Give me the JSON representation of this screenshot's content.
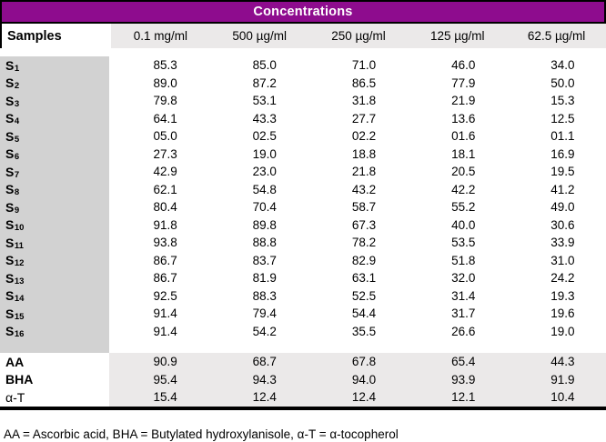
{
  "table": {
    "title": "Concentrations",
    "samples_header": "Samples",
    "columns": [
      "0.1 mg/ml",
      "500 µg/ml",
      "250 µg/ml",
      "125 µg/ml",
      "62.5 µg/ml"
    ],
    "samples": [
      {
        "label": "S",
        "sub": "1",
        "values": [
          "85.3",
          "85.0",
          "71.0",
          "46.0",
          "34.0"
        ]
      },
      {
        "label": "S",
        "sub": "2",
        "values": [
          "89.0",
          "87.2",
          "86.5",
          "77.9",
          "50.0"
        ]
      },
      {
        "label": "S",
        "sub": "3",
        "values": [
          "79.8",
          "53.1",
          "31.8",
          "21.9",
          "15.3"
        ]
      },
      {
        "label": "S",
        "sub": "4",
        "values": [
          "64.1",
          "43.3",
          "27.7",
          "13.6",
          "12.5"
        ]
      },
      {
        "label": "S",
        "sub": "5",
        "values": [
          "05.0",
          "02.5",
          "02.2",
          "01.6",
          "01.1"
        ]
      },
      {
        "label": "S",
        "sub": "6",
        "values": [
          "27.3",
          "19.0",
          "18.8",
          "18.1",
          "16.9"
        ]
      },
      {
        "label": "S",
        "sub": "7",
        "values": [
          "42.9",
          "23.0",
          "21.8",
          "20.5",
          "19.5"
        ]
      },
      {
        "label": "S",
        "sub": "8",
        "values": [
          "62.1",
          "54.8",
          "43.2",
          "42.2",
          "41.2"
        ]
      },
      {
        "label": "S",
        "sub": "9",
        "values": [
          "80.4",
          "70.4",
          "58.7",
          "55.2",
          "49.0"
        ]
      },
      {
        "label": "S",
        "sub": "10",
        "values": [
          "91.8",
          "89.8",
          "67.3",
          "40.0",
          "30.6"
        ]
      },
      {
        "label": "S",
        "sub": "11",
        "values": [
          "93.8",
          "88.8",
          "78.2",
          "53.5",
          "33.9"
        ]
      },
      {
        "label": "S",
        "sub": "12",
        "values": [
          "86.7",
          "83.7",
          "82.9",
          "51.8",
          "31.0"
        ]
      },
      {
        "label": "S",
        "sub": "13",
        "values": [
          "86.7",
          "81.9",
          "63.1",
          "32.0",
          "24.2"
        ]
      },
      {
        "label": "S",
        "sub": "14",
        "values": [
          "92.5",
          "88.3",
          "52.5",
          "31.4",
          "19.3"
        ]
      },
      {
        "label": "S",
        "sub": "15",
        "values": [
          "91.4",
          "79.4",
          "54.4",
          "31.7",
          "19.6"
        ]
      },
      {
        "label": "S",
        "sub": "16",
        "values": [
          "91.4",
          "54.2",
          "35.5",
          "26.6",
          "19.0"
        ]
      }
    ],
    "standards": [
      {
        "label": "AA",
        "bold": true,
        "values": [
          "90.9",
          "68.7",
          "67.8",
          "65.4",
          "44.3"
        ]
      },
      {
        "label": "BHA",
        "bold": true,
        "values": [
          "95.4",
          "94.3",
          "94.0",
          "93.9",
          "91.9"
        ]
      },
      {
        "label": "α-T",
        "bold": false,
        "values": [
          "15.4",
          "12.4",
          "12.4",
          "12.1",
          "10.4"
        ]
      }
    ],
    "footnote": "AA = Ascorbic acid, BHA = Butylated hydroxylanisole, α-T = α-tocopherol"
  },
  "colors": {
    "header_band": "#8E0C8E",
    "band_border": "#000000",
    "column_header_bg": "#EBE9E9",
    "sample_column_bg": "#D2D2D2",
    "standards_bg": "#EBE9E9",
    "text": "#000000"
  },
  "chart_data": {
    "type": "table",
    "title": "Concentrations",
    "row_header": "Samples",
    "columns": [
      "0.1 mg/ml",
      "500 µg/ml",
      "250 µg/ml",
      "125 µg/ml",
      "62.5 µg/ml"
    ],
    "rows": [
      {
        "sample": "S1",
        "values": [
          85.3,
          85.0,
          71.0,
          46.0,
          34.0
        ]
      },
      {
        "sample": "S2",
        "values": [
          89.0,
          87.2,
          86.5,
          77.9,
          50.0
        ]
      },
      {
        "sample": "S3",
        "values": [
          79.8,
          53.1,
          31.8,
          21.9,
          15.3
        ]
      },
      {
        "sample": "S4",
        "values": [
          64.1,
          43.3,
          27.7,
          13.6,
          12.5
        ]
      },
      {
        "sample": "S5",
        "values": [
          5.0,
          2.5,
          2.2,
          1.6,
          1.1
        ]
      },
      {
        "sample": "S6",
        "values": [
          27.3,
          19.0,
          18.8,
          18.1,
          16.9
        ]
      },
      {
        "sample": "S7",
        "values": [
          42.9,
          23.0,
          21.8,
          20.5,
          19.5
        ]
      },
      {
        "sample": "S8",
        "values": [
          62.1,
          54.8,
          43.2,
          42.2,
          41.2
        ]
      },
      {
        "sample": "S9",
        "values": [
          80.4,
          70.4,
          58.7,
          55.2,
          49.0
        ]
      },
      {
        "sample": "S10",
        "values": [
          91.8,
          89.8,
          67.3,
          40.0,
          30.6
        ]
      },
      {
        "sample": "S11",
        "values": [
          93.8,
          88.8,
          78.2,
          53.5,
          33.9
        ]
      },
      {
        "sample": "S12",
        "values": [
          86.7,
          83.7,
          82.9,
          51.8,
          31.0
        ]
      },
      {
        "sample": "S13",
        "values": [
          86.7,
          81.9,
          63.1,
          32.0,
          24.2
        ]
      },
      {
        "sample": "S14",
        "values": [
          92.5,
          88.3,
          52.5,
          31.4,
          19.3
        ]
      },
      {
        "sample": "S15",
        "values": [
          91.4,
          79.4,
          54.4,
          31.7,
          19.6
        ]
      },
      {
        "sample": "S16",
        "values": [
          91.4,
          54.2,
          35.5,
          26.6,
          19.0
        ]
      },
      {
        "sample": "AA",
        "values": [
          90.9,
          68.7,
          67.8,
          65.4,
          44.3
        ]
      },
      {
        "sample": "BHA",
        "values": [
          95.4,
          94.3,
          94.0,
          93.9,
          91.9
        ]
      },
      {
        "sample": "α-T",
        "values": [
          15.4,
          12.4,
          12.4,
          12.1,
          10.4
        ]
      }
    ],
    "footnote": "AA = Ascorbic acid, BHA = Butylated hydroxylanisole, α-T = α-tocopherol"
  }
}
